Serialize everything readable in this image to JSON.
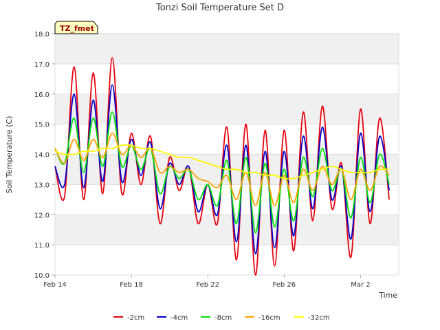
{
  "chart_data": {
    "type": "line",
    "title": "Tonzi Soil Temperature Set D",
    "xlabel": "Time",
    "ylabel": "Soil Temperature (C)",
    "badge": "TZ_fmet",
    "x_ticks": [
      "Feb 14",
      "Feb 18",
      "Feb 22",
      "Feb 26",
      "Mar 2"
    ],
    "x_range_days": [
      0,
      18
    ],
    "ylim": [
      10.0,
      18.0
    ],
    "y_ticks": [
      "10.0",
      "11.0",
      "12.0",
      "13.0",
      "14.0",
      "15.0",
      "16.0",
      "17.0",
      "18.0"
    ],
    "grid": true,
    "legend_position": "bottom-center",
    "x": [
      0.0,
      0.5,
      1.0,
      1.5,
      2.0,
      2.5,
      3.0,
      3.5,
      4.0,
      4.5,
      5.0,
      5.5,
      6.0,
      6.5,
      7.0,
      7.5,
      8.0,
      8.5,
      9.0,
      9.5,
      10.0,
      10.5,
      11.0,
      11.5,
      12.0,
      12.5,
      13.0,
      13.5,
      14.0,
      14.5,
      15.0,
      15.5,
      16.0,
      16.5,
      17.0,
      17.5
    ],
    "x_dates": [
      "Feb 14",
      "Feb 14.5",
      "Feb 15",
      "Feb 15.5",
      "Feb 16",
      "Feb 16.5",
      "Feb 17",
      "Feb 17.5",
      "Feb 18",
      "Feb 18.5",
      "Feb 19",
      "Feb 19.5",
      "Feb 20",
      "Feb 20.5",
      "Feb 21",
      "Feb 21.5",
      "Feb 22",
      "Feb 22.5",
      "Feb 23",
      "Feb 23.5",
      "Feb 24",
      "Feb 24.5",
      "Feb 25",
      "Feb 25.5",
      "Feb 26",
      "Feb 26.5",
      "Feb 27",
      "Feb 27.5",
      "Feb 28",
      "Feb 28.5",
      "Mar 1",
      "Mar 1.5",
      "Mar 2",
      "Mar 2.5",
      "Mar 3",
      "Mar 3.5"
    ],
    "series": [
      {
        "name": "-2cm",
        "color": "#e8000b",
        "values": [
          13.6,
          12.6,
          16.9,
          12.5,
          16.7,
          12.7,
          17.2,
          12.7,
          14.7,
          13.0,
          14.6,
          11.7,
          13.9,
          12.8,
          13.6,
          11.7,
          13.0,
          11.7,
          14.9,
          10.5,
          15.0,
          10.0,
          14.8,
          10.3,
          14.8,
          10.8,
          15.4,
          11.8,
          15.6,
          12.2,
          13.7,
          10.6,
          15.5,
          11.7,
          15.2,
          12.5
        ]
      },
      {
        "name": "-4cm",
        "color": "#0000d0",
        "values": [
          13.6,
          13.0,
          16.0,
          12.9,
          15.8,
          13.1,
          16.3,
          13.1,
          14.5,
          13.3,
          14.4,
          12.2,
          13.7,
          13.0,
          13.6,
          12.1,
          13.0,
          12.0,
          14.3,
          11.1,
          14.3,
          10.7,
          14.1,
          10.9,
          14.1,
          11.3,
          14.6,
          12.2,
          14.9,
          12.5,
          13.6,
          11.2,
          14.7,
          12.1,
          14.6,
          12.8
        ]
      },
      {
        "name": "-8cm",
        "color": "#00e000",
        "values": [
          14.2,
          13.7,
          15.2,
          13.4,
          15.2,
          13.6,
          15.4,
          13.6,
          14.3,
          13.5,
          14.2,
          12.7,
          13.6,
          13.2,
          13.5,
          12.5,
          13.0,
          12.3,
          13.8,
          11.7,
          13.9,
          11.4,
          13.7,
          11.6,
          13.5,
          11.8,
          13.9,
          12.6,
          14.2,
          12.8,
          13.5,
          11.9,
          13.9,
          12.4,
          14.0,
          13.0
        ]
      },
      {
        "name": "-16cm",
        "color": "#ff9f00",
        "values": [
          14.2,
          13.7,
          14.5,
          13.8,
          14.5,
          13.9,
          14.7,
          14.0,
          14.3,
          13.9,
          14.2,
          13.4,
          13.6,
          13.4,
          13.5,
          13.2,
          13.1,
          12.9,
          13.3,
          12.5,
          13.4,
          12.3,
          13.4,
          12.3,
          13.3,
          12.4,
          13.5,
          12.8,
          13.6,
          13.0,
          13.5,
          12.5,
          13.5,
          12.8,
          13.6,
          13.3
        ]
      },
      {
        "name": "-32cm",
        "color": "#ffff00",
        "values": [
          14.1,
          14.0,
          14.0,
          14.1,
          14.1,
          14.2,
          14.2,
          14.3,
          14.3,
          14.2,
          14.2,
          14.1,
          14.0,
          13.9,
          13.9,
          13.8,
          13.7,
          13.6,
          13.5,
          13.5,
          13.4,
          13.4,
          13.3,
          13.3,
          13.2,
          13.2,
          13.3,
          13.4,
          13.5,
          13.6,
          13.5,
          13.4,
          13.4,
          13.4,
          13.5,
          13.5
        ]
      }
    ]
  }
}
